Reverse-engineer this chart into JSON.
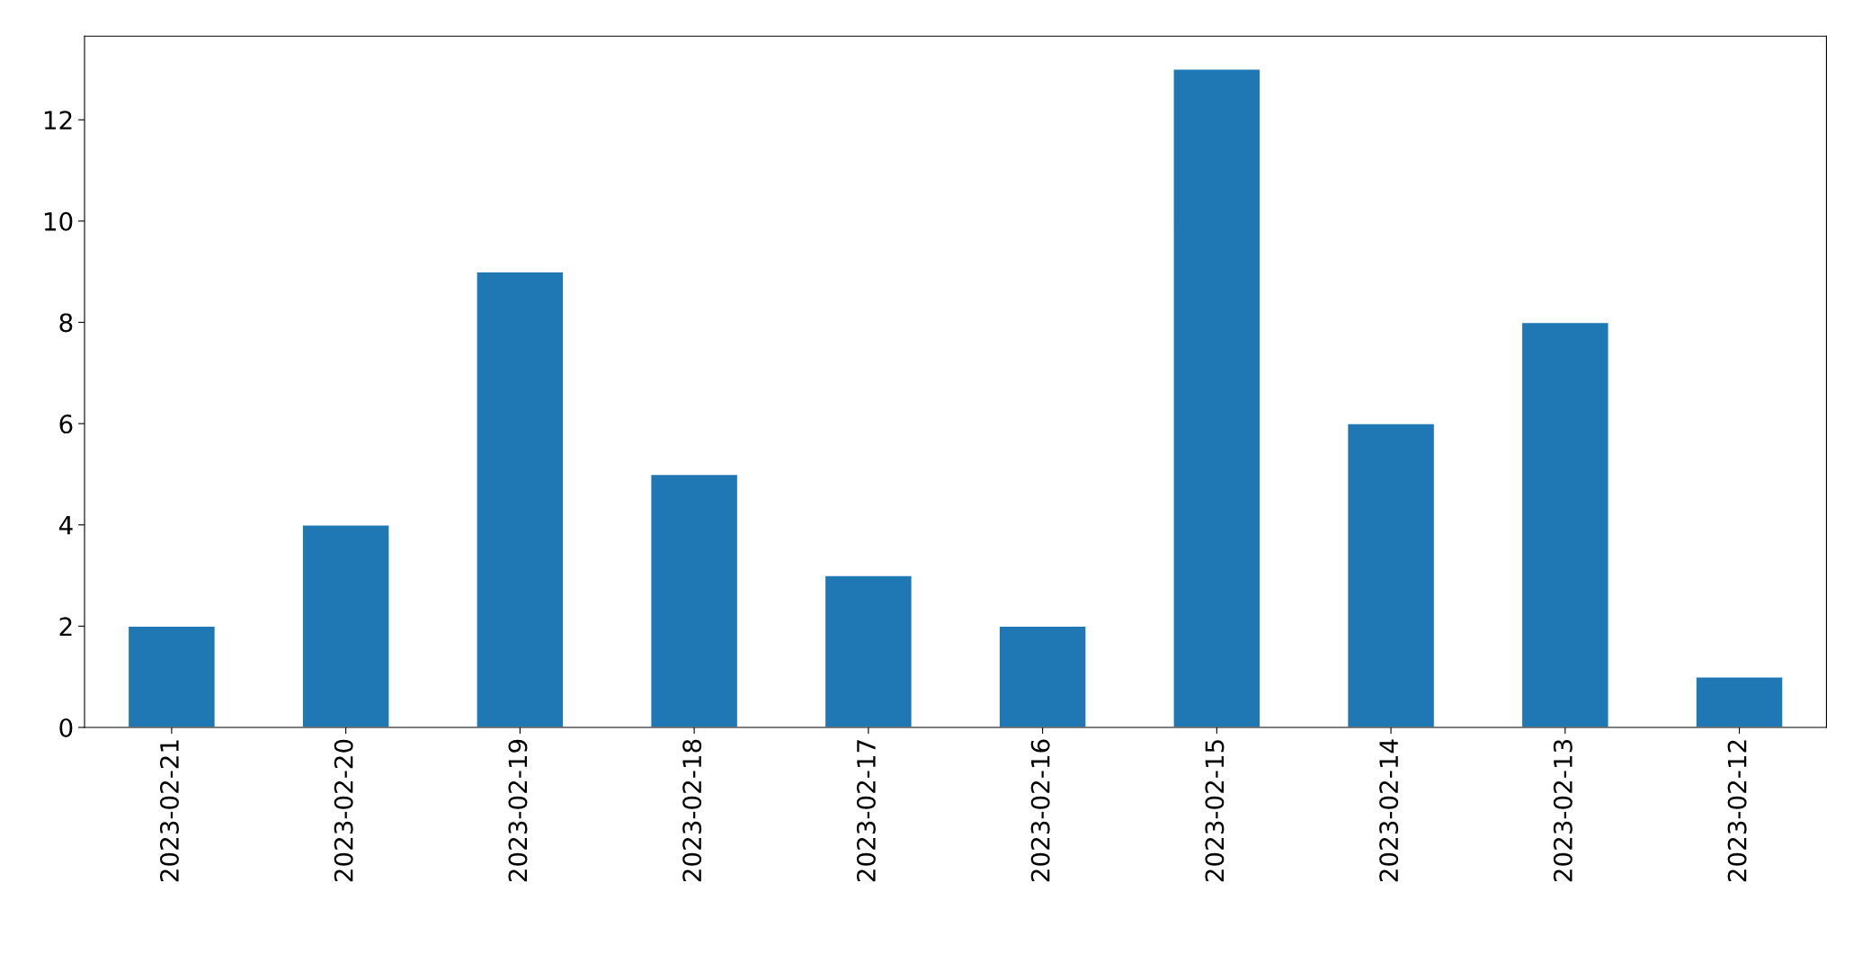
{
  "chart_data": {
    "type": "bar",
    "categories": [
      "2023-02-21",
      "2023-02-20",
      "2023-02-19",
      "2023-02-18",
      "2023-02-17",
      "2023-02-16",
      "2023-02-15",
      "2023-02-14",
      "2023-02-13",
      "2023-02-12"
    ],
    "values": [
      2,
      4,
      9,
      5,
      3,
      2,
      13,
      6,
      8,
      1
    ],
    "color": "#1f77b4",
    "ylim": [
      0,
      13.65
    ],
    "yticks": [
      0,
      2,
      4,
      6,
      8,
      10,
      12
    ],
    "grid": false,
    "legend": false
  }
}
